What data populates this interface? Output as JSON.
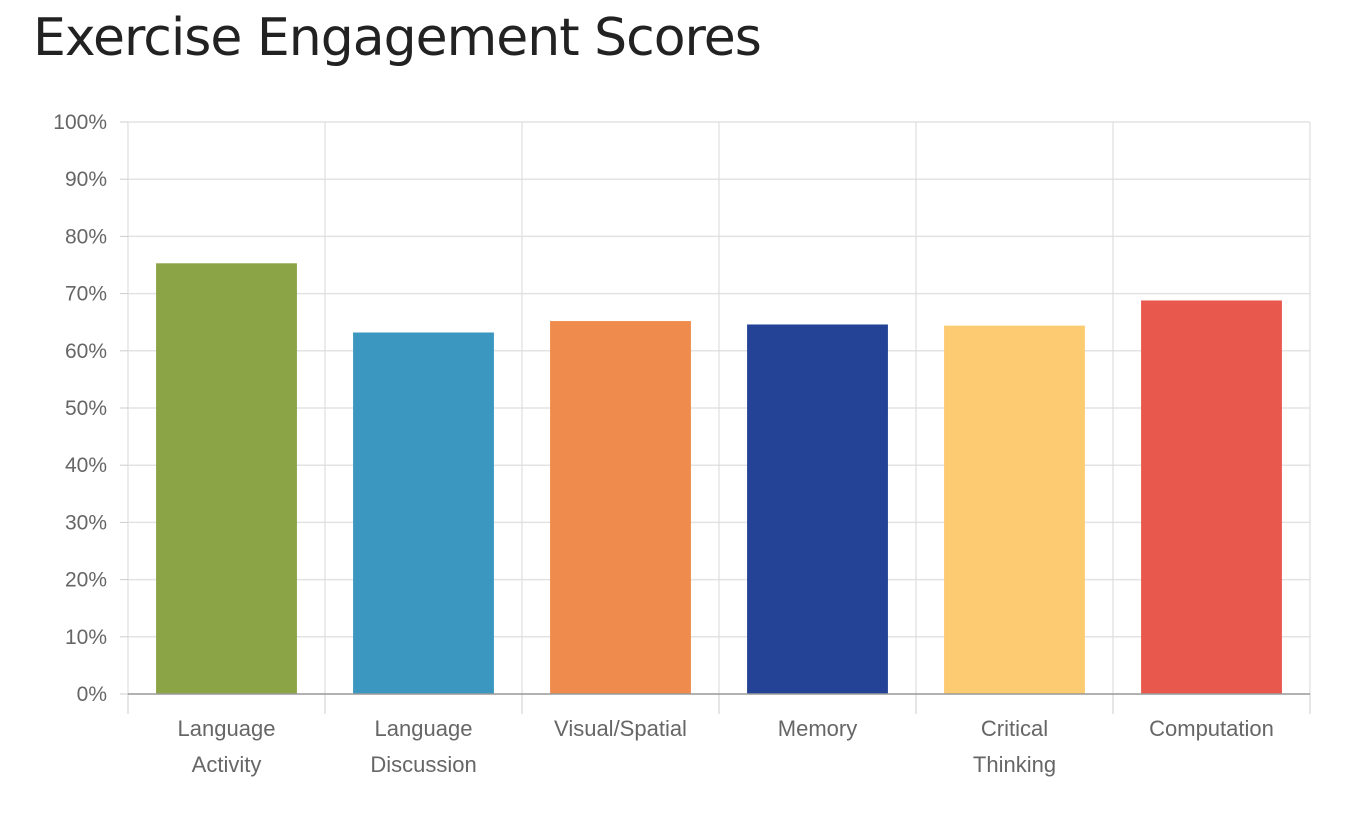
{
  "chart_data": {
    "type": "bar",
    "title": "Exercise Engagement Scores",
    "xlabel": "",
    "ylabel": "",
    "ylim": [
      0,
      100
    ],
    "yticks": [
      "0%",
      "10%",
      "20%",
      "30%",
      "40%",
      "50%",
      "60%",
      "70%",
      "80%",
      "90%",
      "100%"
    ],
    "categories": [
      [
        "Language",
        "Activity"
      ],
      [
        "Language",
        "Discussion"
      ],
      [
        "Visual/Spatial"
      ],
      [
        "Memory"
      ],
      [
        "Critical",
        "Thinking"
      ],
      [
        "Computation"
      ]
    ],
    "values": [
      75.3,
      63.2,
      65.2,
      64.6,
      64.4,
      68.8
    ],
    "colors": [
      "#8ba446",
      "#3b97bf",
      "#ef8b4c",
      "#244396",
      "#fdcb71",
      "#e8584d"
    ],
    "grid": true,
    "legend": "none"
  }
}
